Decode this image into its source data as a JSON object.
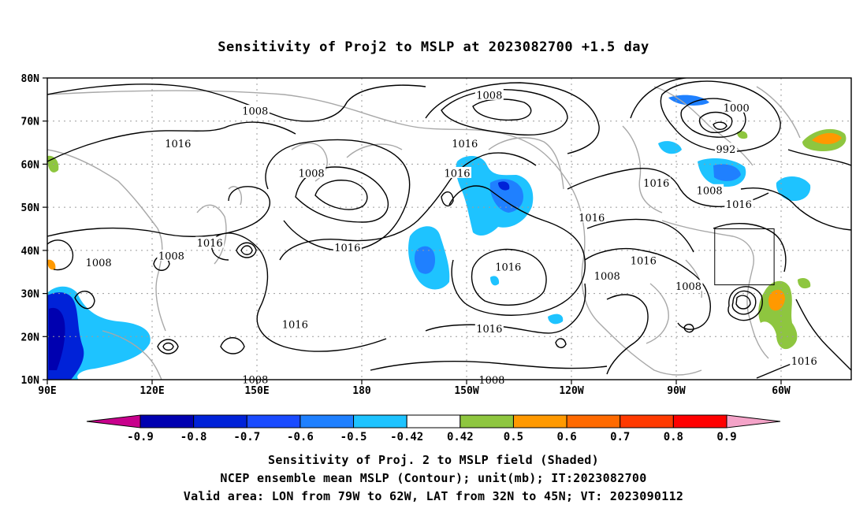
{
  "title": "Sensitivity of Proj2 to MSLP at 2023082700 +1.5 day",
  "axes": {
    "lat_labels": [
      "80N",
      "70N",
      "60N",
      "50N",
      "40N",
      "30N",
      "20N",
      "10N"
    ],
    "lon_labels": [
      "90E",
      "120E",
      "150E",
      "180",
      "150W",
      "120W",
      "90W",
      "60W"
    ]
  },
  "contour_labels": [
    {
      "text": "1008",
      "lon": 149.5,
      "lat": 72.3
    },
    {
      "text": "1008",
      "lon": 165.6,
      "lat": 57.9
    },
    {
      "text": "1016",
      "lon": 127.4,
      "lat": 64.7
    },
    {
      "text": "1016",
      "lon": 136.5,
      "lat": 41.7
    },
    {
      "text": "1008",
      "lon": 125.5,
      "lat": 38.7
    },
    {
      "text": "1008",
      "lon": 104.7,
      "lat": 37.1
    },
    {
      "text": "1016",
      "lon": 175.9,
      "lat": 40.6
    },
    {
      "text": "1016",
      "lon": 160.9,
      "lat": 22.8
    },
    {
      "text": "1008",
      "lon": 149.5,
      "lat": 10.0
    },
    {
      "text": "1008",
      "lon": -143.5,
      "lat": 76.0
    },
    {
      "text": "1016",
      "lon": -150.5,
      "lat": 64.7
    },
    {
      "text": "1016",
      "lon": -152.7,
      "lat": 57.9
    },
    {
      "text": "1016",
      "lon": -138.1,
      "lat": 36.1
    },
    {
      "text": "1016",
      "lon": -114.2,
      "lat": 47.6
    },
    {
      "text": "1008",
      "lon": -109.8,
      "lat": 34.0
    },
    {
      "text": "1016",
      "lon": -143.5,
      "lat": 21.8
    },
    {
      "text": "1008",
      "lon": -142.8,
      "lat": 9.9
    },
    {
      "text": "1016",
      "lon": -99.4,
      "lat": 37.6
    },
    {
      "text": "1016",
      "lon": -95.7,
      "lat": 55.6
    },
    {
      "text": "1008",
      "lon": -80.5,
      "lat": 53.9
    },
    {
      "text": "1008",
      "lon": -86.5,
      "lat": 31.7
    },
    {
      "text": "1016",
      "lon": -72.1,
      "lat": 50.7
    },
    {
      "text": "1000",
      "lon": -72.8,
      "lat": 73.1
    },
    {
      "text": "992",
      "lon": -75.8,
      "lat": 63.5
    },
    {
      "text": "1016",
      "lon": -53.4,
      "lat": 14.3
    }
  ],
  "valid_box": {
    "lon_min": -79,
    "lon_max": -62,
    "lat_min": 32,
    "lat_max": 45
  },
  "colorbar": {
    "labels": [
      "-0.9",
      "-0.8",
      "-0.7",
      "-0.6",
      "-0.5",
      "-0.42",
      "0.42",
      "0.5",
      "0.6",
      "0.7",
      "0.8",
      "0.9"
    ],
    "colors": [
      "#0000b0",
      "#0022d8",
      "#1a4bff",
      "#1f80ff",
      "#1ec3ff",
      "#ffffff",
      "#8ec63f",
      "#ff9900",
      "#ff6a00",
      "#ff3a00",
      "#ff0000"
    ],
    "low_color": "#c8008c",
    "high_color": "#f4a3c8"
  },
  "shading": {
    "blue": "#1ec3ff",
    "mid_blue": "#1f80ff",
    "dark_blue": "#0022d8",
    "navy": "#0000b0",
    "green": "#8ec63f",
    "orange": "#ff9900",
    "red_orange": "#ff3a00"
  },
  "caption": {
    "line1": "Sensitivity of Proj. 2 to MSLP field (Shaded)",
    "line2": "NCEP ensemble mean MSLP (Contour); unit(mb); IT:2023082700",
    "line3": "Valid area: LON from 79W to 62W, LAT from 32N to 45N; VT: 2023090112"
  }
}
